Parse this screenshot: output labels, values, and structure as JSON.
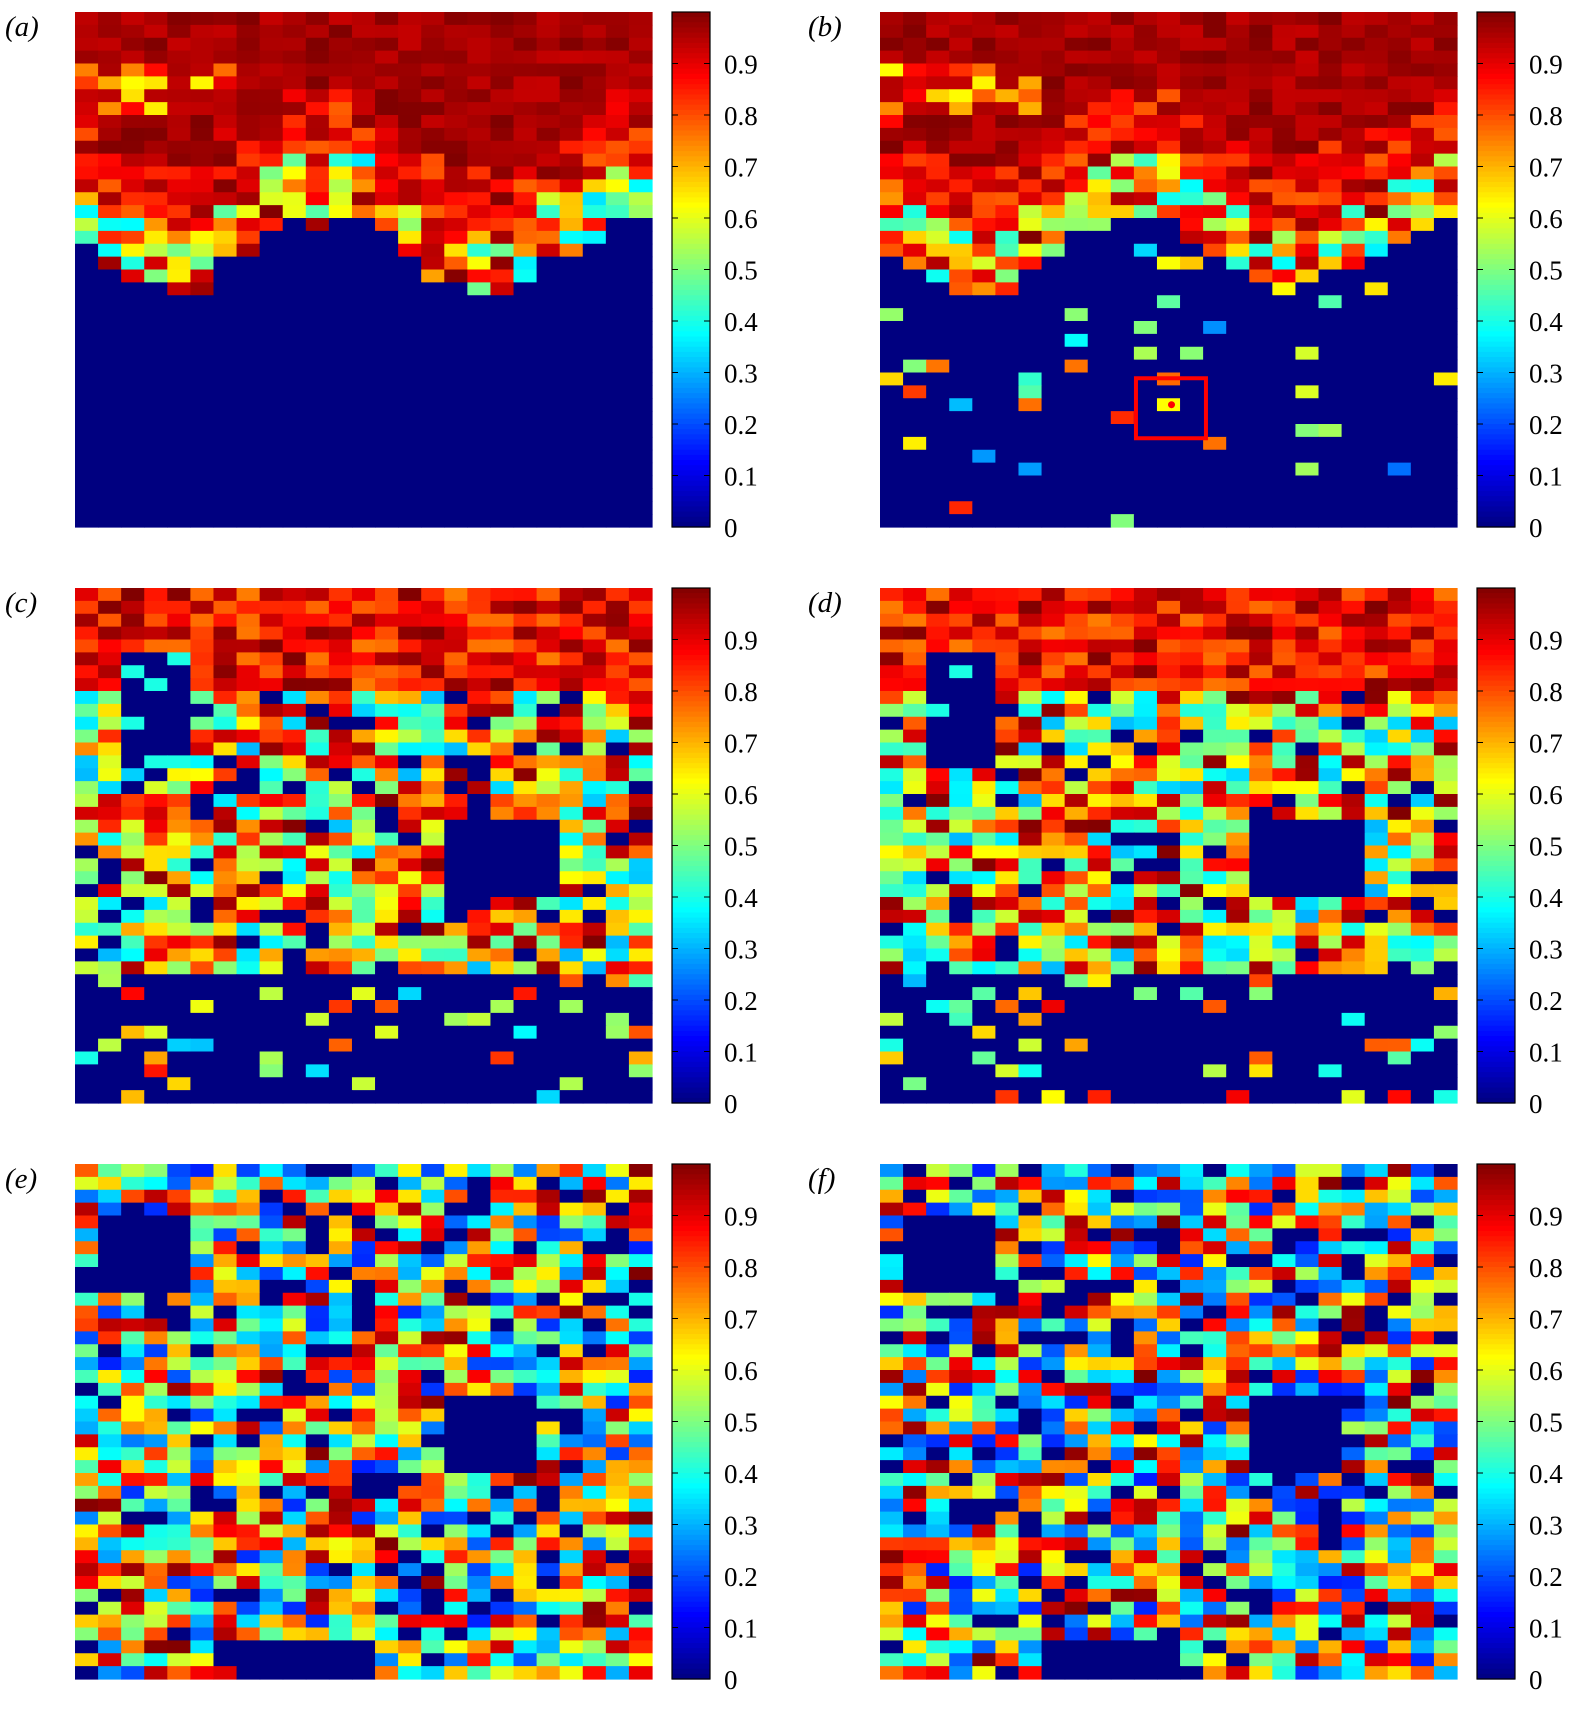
{
  "chart_data": [
    {
      "type": "heatmap",
      "panel": "(a)",
      "grid": {
        "rows": 40,
        "cols": 25
      },
      "colormap": "jet",
      "clim": [
        0,
        1
      ],
      "colorbar_ticks": [
        "0",
        "0.1",
        "0.2",
        "0.3",
        "0.4",
        "0.5",
        "0.6",
        "0.7",
        "0.8",
        "0.9"
      ],
      "seed": 11,
      "pattern": "layered",
      "summary": "upper ~20 rows high values (0.85-1), noisy transition band, lower ~20 rows zero"
    },
    {
      "type": "heatmap",
      "panel": "(b)",
      "grid": {
        "rows": 40,
        "cols": 25
      },
      "colormap": "jet",
      "clim": [
        0,
        1
      ],
      "colorbar_ticks": [
        "0",
        "0.1",
        "0.2",
        "0.3",
        "0.4",
        "0.5",
        "0.6",
        "0.7",
        "0.8",
        "0.9"
      ],
      "seed": 23,
      "pattern": "layered-sparse",
      "highlight": true,
      "summary": "same as (a) with scattered nonzero cells below interface; one highlighted cell in red box"
    },
    {
      "type": "heatmap",
      "panel": "(c)",
      "grid": {
        "rows": 40,
        "cols": 25
      },
      "colormap": "jet",
      "clim": [
        0,
        1
      ],
      "colorbar_ticks": [
        "0",
        "0.1",
        "0.2",
        "0.3",
        "0.4",
        "0.5",
        "0.6",
        "0.7",
        "0.8",
        "0.9"
      ],
      "seed": 37,
      "pattern": "mixed",
      "summary": "high values on top, mixed mid region, zero region near bottom"
    },
    {
      "type": "heatmap",
      "panel": "(d)",
      "grid": {
        "rows": 40,
        "cols": 25
      },
      "colormap": "jet",
      "clim": [
        0,
        1
      ],
      "colorbar_ticks": [
        "0",
        "0.1",
        "0.2",
        "0.3",
        "0.4",
        "0.5",
        "0.6",
        "0.7",
        "0.8",
        "0.9"
      ],
      "seed": 41,
      "pattern": "mixed-sparse",
      "summary": "similar to (c) with more scattered nonzero cells near bottom"
    },
    {
      "type": "heatmap",
      "panel": "(e)",
      "grid": {
        "rows": 40,
        "cols": 25
      },
      "colormap": "jet",
      "clim": [
        0,
        1
      ],
      "colorbar_ticks": [
        "0",
        "0.1",
        "0.2",
        "0.3",
        "0.4",
        "0.5",
        "0.6",
        "0.7",
        "0.8",
        "0.9"
      ],
      "seed": 53,
      "pattern": "random",
      "summary": "highly mixed values throughout with several zero patches"
    },
    {
      "type": "heatmap",
      "panel": "(f)",
      "grid": {
        "rows": 40,
        "cols": 25
      },
      "colormap": "jet",
      "clim": [
        0,
        1
      ],
      "colorbar_ticks": [
        "0",
        "0.1",
        "0.2",
        "0.3",
        "0.4",
        "0.5",
        "0.6",
        "0.7",
        "0.8",
        "0.9"
      ],
      "seed": 67,
      "pattern": "random",
      "summary": "similar to (e), highly mixed with zero patches"
    }
  ],
  "colors": {
    "highlight_box": "#ff0000",
    "highlight_cell": "#ffff00",
    "highlight_dot": "#ff0000"
  }
}
